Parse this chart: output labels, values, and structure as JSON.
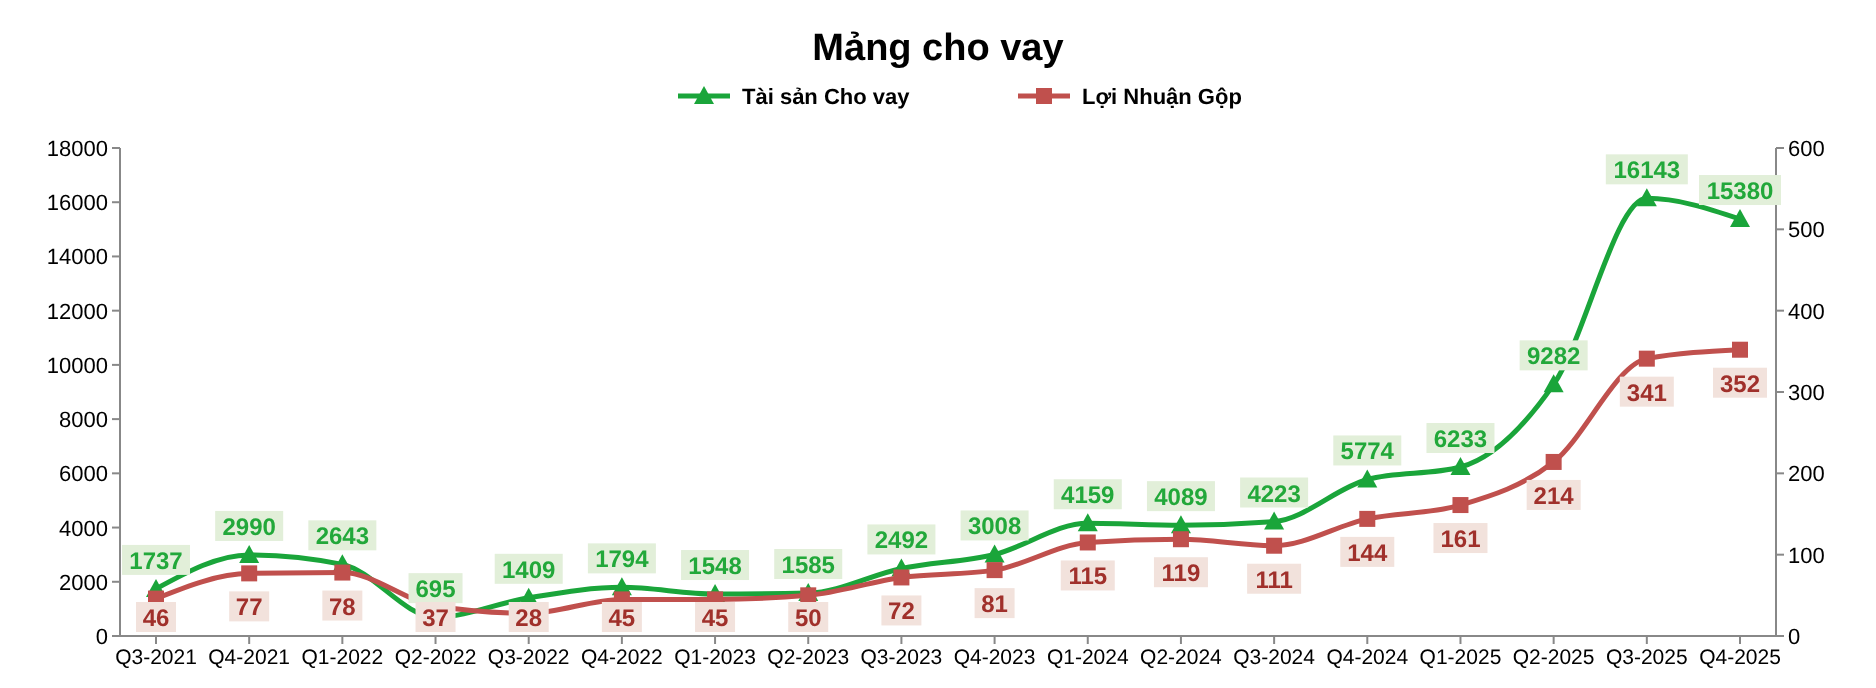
{
  "chart_data": {
    "type": "line",
    "title": "Mảng cho vay",
    "categories": [
      "Q3-2021",
      "Q4-2021",
      "Q1-2022",
      "Q2-2022",
      "Q3-2022",
      "Q4-2022",
      "Q1-2023",
      "Q2-2023",
      "Q3-2023",
      "Q4-2023",
      "Q1-2024",
      "Q2-2024",
      "Q3-2024",
      "Q4-2024",
      "Q1-2025",
      "Q2-2025",
      "Q3-2025",
      "Q4-2025"
    ],
    "series": [
      {
        "name": "Tài sản Cho vay",
        "color": "#1aa53a",
        "marker": "triangle",
        "values": [
          1737,
          2990,
          2643,
          695,
          1409,
          1794,
          1548,
          1585,
          2492,
          3008,
          4159,
          4089,
          4223,
          5774,
          6233,
          9282,
          16143,
          15380
        ]
      },
      {
        "name": "Lợi Nhuận Gộp",
        "color": "#c0504d",
        "marker": "square",
        "axis": "y2",
        "values": [
          46,
          77,
          78,
          37,
          28,
          45,
          45,
          50,
          72,
          81,
          115,
          119,
          111,
          144,
          161,
          214,
          341,
          352
        ]
      }
    ],
    "ylim": [
      0,
      18000
    ],
    "yticks": [
      0,
      2000,
      4000,
      6000,
      8000,
      10000,
      12000,
      14000,
      16000,
      18000
    ],
    "y2lim": [
      0,
      600
    ],
    "y2ticks": [
      0,
      100,
      200,
      300,
      400,
      500,
      600
    ],
    "data_labels": true,
    "legend": "top",
    "grid": false
  }
}
